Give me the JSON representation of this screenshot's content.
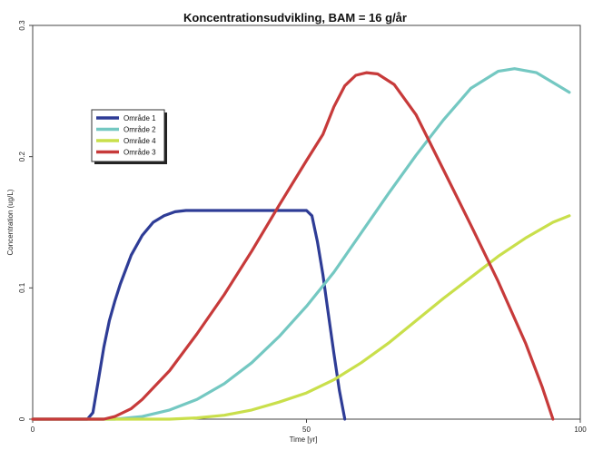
{
  "chart_data": {
    "type": "line",
    "title": "Koncentrationsudvikling, BAM = 16 g/år",
    "xlabel": "Time [yr]",
    "ylabel": "Concentration (ug/L)",
    "xlim": [
      0,
      100
    ],
    "ylim": [
      0,
      0.3
    ],
    "x_ticks": [
      0,
      50,
      100
    ],
    "y_ticks": [
      0,
      0.1,
      0.2,
      0.3
    ],
    "grid": false,
    "legend_position": "left",
    "series": [
      {
        "name": "Område 1",
        "color": "#2e3c96",
        "points": [
          [
            0,
            0
          ],
          [
            10,
            0
          ],
          [
            11,
            0.005
          ],
          [
            12,
            0.03
          ],
          [
            13,
            0.055
          ],
          [
            14,
            0.075
          ],
          [
            15,
            0.09
          ],
          [
            16,
            0.103
          ],
          [
            18,
            0.125
          ],
          [
            20,
            0.14
          ],
          [
            22,
            0.15
          ],
          [
            24,
            0.155
          ],
          [
            26,
            0.158
          ],
          [
            28,
            0.159
          ],
          [
            30,
            0.159
          ],
          [
            40,
            0.159
          ],
          [
            50,
            0.159
          ],
          [
            51,
            0.155
          ],
          [
            52,
            0.135
          ],
          [
            53,
            0.11
          ],
          [
            54,
            0.08
          ],
          [
            55,
            0.05
          ],
          [
            56,
            0.022
          ],
          [
            57,
            0
          ]
        ]
      },
      {
        "name": "Område 2",
        "color": "#74c8c2",
        "points": [
          [
            0,
            0
          ],
          [
            15,
            0
          ],
          [
            20,
            0.002
          ],
          [
            25,
            0.007
          ],
          [
            30,
            0.015
          ],
          [
            35,
            0.027
          ],
          [
            40,
            0.043
          ],
          [
            45,
            0.063
          ],
          [
            50,
            0.086
          ],
          [
            55,
            0.112
          ],
          [
            60,
            0.142
          ],
          [
            65,
            0.172
          ],
          [
            70,
            0.201
          ],
          [
            75,
            0.228
          ],
          [
            80,
            0.252
          ],
          [
            85,
            0.265
          ],
          [
            88,
            0.267
          ],
          [
            92,
            0.264
          ],
          [
            96,
            0.254
          ],
          [
            98,
            0.249
          ]
        ]
      },
      {
        "name": "Område 4",
        "color": "#c9df4b",
        "points": [
          [
            0,
            0
          ],
          [
            25,
            0
          ],
          [
            30,
            0.001
          ],
          [
            35,
            0.003
          ],
          [
            40,
            0.007
          ],
          [
            45,
            0.013
          ],
          [
            50,
            0.02
          ],
          [
            55,
            0.03
          ],
          [
            60,
            0.043
          ],
          [
            65,
            0.058
          ],
          [
            70,
            0.075
          ],
          [
            75,
            0.092
          ],
          [
            80,
            0.108
          ],
          [
            85,
            0.124
          ],
          [
            90,
            0.138
          ],
          [
            95,
            0.15
          ],
          [
            98,
            0.155
          ]
        ]
      },
      {
        "name": "Område 3",
        "color": "#c73a3a",
        "points": [
          [
            0,
            0
          ],
          [
            13,
            0
          ],
          [
            15,
            0.002
          ],
          [
            18,
            0.008
          ],
          [
            20,
            0.015
          ],
          [
            25,
            0.037
          ],
          [
            30,
            0.065
          ],
          [
            35,
            0.095
          ],
          [
            40,
            0.128
          ],
          [
            45,
            0.163
          ],
          [
            50,
            0.197
          ],
          [
            53,
            0.217
          ],
          [
            55,
            0.238
          ],
          [
            57,
            0.254
          ],
          [
            59,
            0.262
          ],
          [
            61,
            0.264
          ],
          [
            63,
            0.263
          ],
          [
            66,
            0.255
          ],
          [
            70,
            0.232
          ],
          [
            75,
            0.19
          ],
          [
            80,
            0.148
          ],
          [
            85,
            0.105
          ],
          [
            90,
            0.058
          ],
          [
            93,
            0.025
          ],
          [
            95,
            0
          ]
        ]
      }
    ]
  }
}
